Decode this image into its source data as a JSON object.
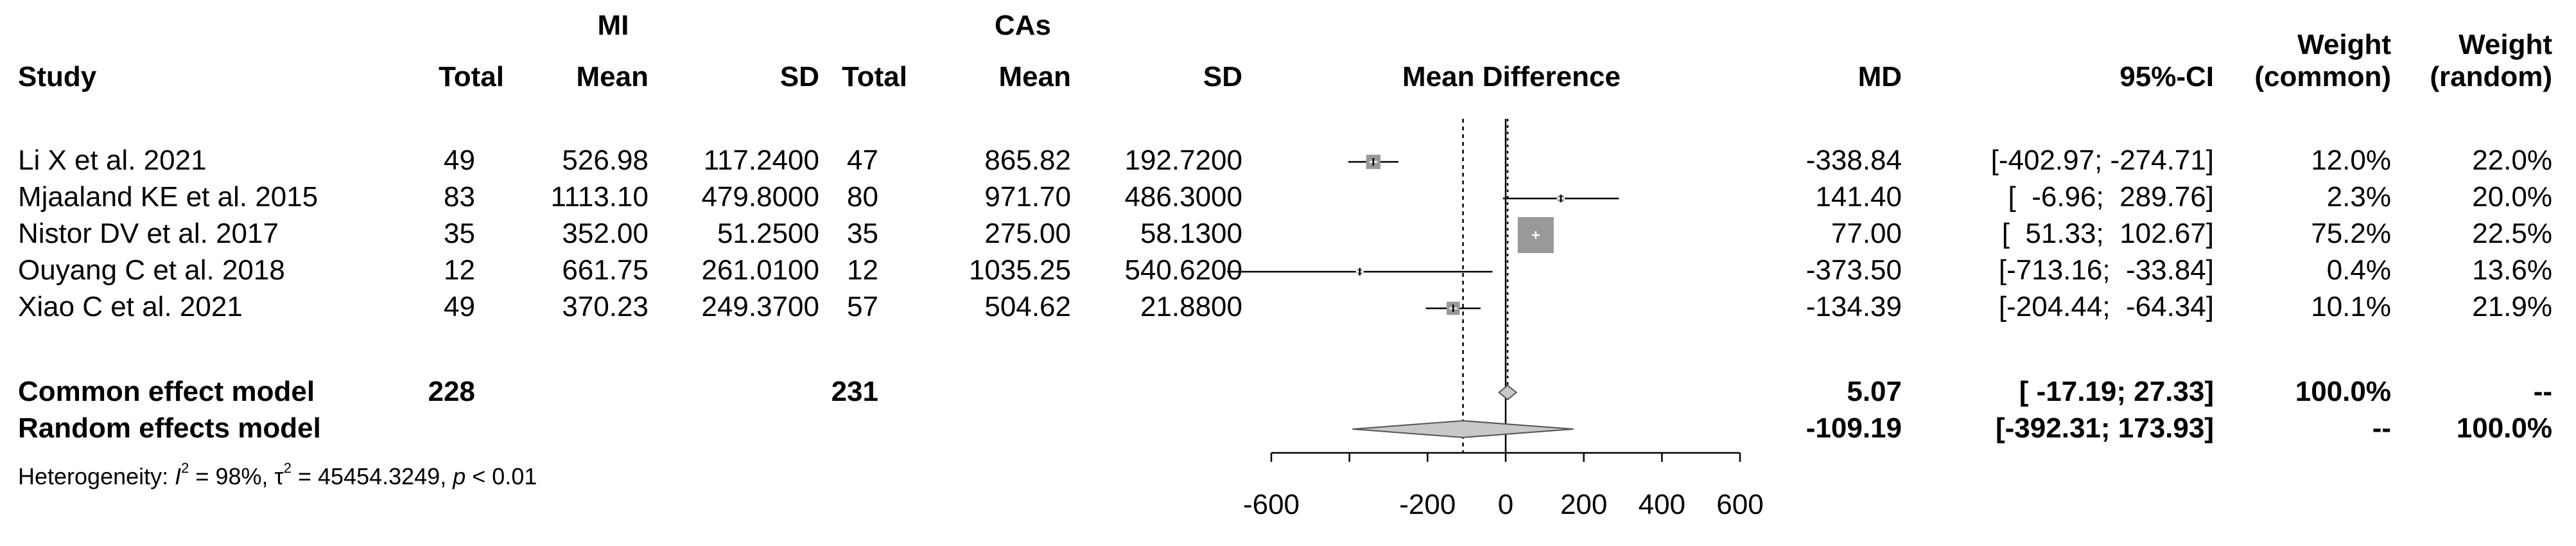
{
  "header": {
    "group1": "MI",
    "group2": "CAs",
    "study": "Study",
    "total1": "Total",
    "mean1": "Mean",
    "sd1": "SD",
    "total2": "Total",
    "mean2": "Mean",
    "sd2": "SD",
    "plot_title": "Mean Difference",
    "md": "MD",
    "ci": "95%-CI",
    "weight_line1_a": "Weight",
    "weight_line2_a": "(common)",
    "weight_line1_b": "Weight",
    "weight_line2_b": "(random)"
  },
  "studies": [
    {
      "name": "Li X et al. 2021",
      "total1": "49",
      "mean1": "526.98",
      "sd1": "117.2400",
      "total2": "47",
      "mean2": "865.82",
      "sd2": "192.7200",
      "md": "-338.84",
      "ci": "[-402.97; -274.71]",
      "w_common": "12.0%",
      "w_random": "22.0%"
    },
    {
      "name": "Mjaaland KE et al. 2015",
      "total1": "83",
      "mean1": "1113.10",
      "sd1": "479.8000",
      "total2": "80",
      "mean2": "971.70",
      "sd2": "486.3000",
      "md": "141.40",
      "ci": "[  -6.96;  289.76]",
      "w_common": "2.3%",
      "w_random": "20.0%"
    },
    {
      "name": "Nistor DV et al. 2017",
      "total1": "35",
      "mean1": "352.00",
      "sd1": "51.2500",
      "total2": "35",
      "mean2": "275.00",
      "sd2": "58.1300",
      "md": "77.00",
      "ci": "[  51.33;  102.67]",
      "w_common": "75.2%",
      "w_random": "22.5%"
    },
    {
      "name": "Ouyang C et al. 2018",
      "total1": "12",
      "mean1": "661.75",
      "sd1": "261.0100",
      "total2": "12",
      "mean2": "1035.25",
      "sd2": "540.6200",
      "md": "-373.50",
      "ci": "[-713.16;  -33.84]",
      "w_common": "0.4%",
      "w_random": "13.6%"
    },
    {
      "name": "Xiao C et al. 2021",
      "total1": "49",
      "mean1": "370.23",
      "sd1": "249.3700",
      "total2": "57",
      "mean2": "504.62",
      "sd2": "21.8800",
      "md": "-134.39",
      "ci": "[-204.44;  -64.34]",
      "w_common": "10.1%",
      "w_random": "21.9%"
    }
  ],
  "summary": {
    "common": {
      "label": "Common effect model",
      "total1": "228",
      "total2": "231",
      "md": "5.07",
      "ci": "[ -17.19;  27.33]",
      "w_common": "100.0%",
      "w_random": "--"
    },
    "random": {
      "label": "Random effects model",
      "md": "-109.19",
      "ci": "[-392.31; 173.93]",
      "w_common": "--",
      "w_random": "100.0%"
    }
  },
  "heterogeneity": {
    "prefix": "Heterogeneity: ",
    "i2_symbol": "I",
    "i2_sup": "2",
    "i2_value": " = 98%, ",
    "tau_symbol": "τ",
    "tau_sup": "2",
    "tau_value": " = 45454.3249, ",
    "p_symbol": "p",
    "p_value": " < 0.01"
  },
  "chart_data": {
    "type": "forest",
    "xlim": [
      -600,
      600
    ],
    "x_ticks": [
      -600,
      -200,
      0,
      200,
      400,
      600
    ],
    "x_tick_labels": [
      "-600",
      "-200",
      "0",
      "200",
      "400",
      "600"
    ],
    "null_line": 0,
    "studies": [
      {
        "name": "Li X et al. 2021",
        "md": -338.84,
        "lower": -402.97,
        "upper": -274.71,
        "weight_common": 12.0
      },
      {
        "name": "Mjaaland KE et al. 2015",
        "md": 141.4,
        "lower": -6.96,
        "upper": 289.76,
        "weight_common": 2.3
      },
      {
        "name": "Nistor DV et al. 2017",
        "md": 77.0,
        "lower": 51.33,
        "upper": 102.67,
        "weight_common": 75.2
      },
      {
        "name": "Ouyang C et al. 2018",
        "md": -373.5,
        "lower": -713.16,
        "upper": -33.84,
        "weight_common": 0.4
      },
      {
        "name": "Xiao C et al. 2021",
        "md": -134.39,
        "lower": -204.44,
        "upper": -64.34,
        "weight_common": 10.1
      }
    ],
    "pooled": [
      {
        "name": "Common effect model",
        "md": 5.07,
        "lower": -17.19,
        "upper": 27.33
      },
      {
        "name": "Random effects model",
        "md": -109.19,
        "lower": -392.31,
        "upper": 173.93
      }
    ],
    "colors": {
      "square": "#999999",
      "diamond": "#c8c8c8",
      "line": "#000000"
    }
  }
}
